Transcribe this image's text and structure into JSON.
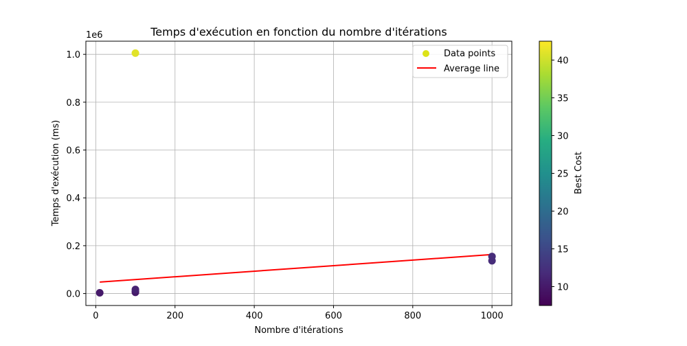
{
  "chart_data": {
    "type": "scatter",
    "title": "Temps d'exécution en fonction du nombre d'itérations",
    "xlabel": "Nombre d'itérations",
    "ylabel": "Temps d'exécution (ms)",
    "y_offset_label": "1e6",
    "xlim": [
      -25,
      1050
    ],
    "ylim": [
      -50000,
      1055000
    ],
    "x_ticks": [
      0,
      200,
      400,
      600,
      800,
      1000
    ],
    "x_tick_labels": [
      "0",
      "200",
      "400",
      "600",
      "800",
      "1000"
    ],
    "y_ticks": [
      0,
      200000,
      400000,
      600000,
      800000,
      1000000
    ],
    "y_tick_labels": [
      "0.0",
      "0.2",
      "0.4",
      "0.6",
      "0.8",
      "1.0"
    ],
    "grid": true,
    "legend_position": "top-right",
    "series": [
      {
        "name": "Data points",
        "kind": "scatter",
        "legend_color": "#dde318",
        "points": [
          {
            "x": 10,
            "y": 3000,
            "cost": 10
          },
          {
            "x": 100,
            "y": 5000,
            "cost": 10
          },
          {
            "x": 100,
            "y": 10000,
            "cost": 10
          },
          {
            "x": 100,
            "y": 17000,
            "cost": 11
          },
          {
            "x": 100,
            "y": 1005000,
            "cost": 41
          },
          {
            "x": 1000,
            "y": 137000,
            "cost": 12
          },
          {
            "x": 1000,
            "y": 155000,
            "cost": 12
          }
        ]
      },
      {
        "name": "Average line",
        "kind": "line",
        "color": "#ff0000",
        "points": [
          {
            "x": 10,
            "y": 48000
          },
          {
            "x": 1000,
            "y": 163000
          }
        ]
      }
    ],
    "colorbar": {
      "label": "Best Cost",
      "colormap": "viridis",
      "range": [
        7.5,
        42.5
      ],
      "ticks": [
        10,
        15,
        20,
        25,
        30,
        35,
        40
      ],
      "tick_labels": [
        "10",
        "15",
        "20",
        "25",
        "30",
        "35",
        "40"
      ]
    }
  }
}
